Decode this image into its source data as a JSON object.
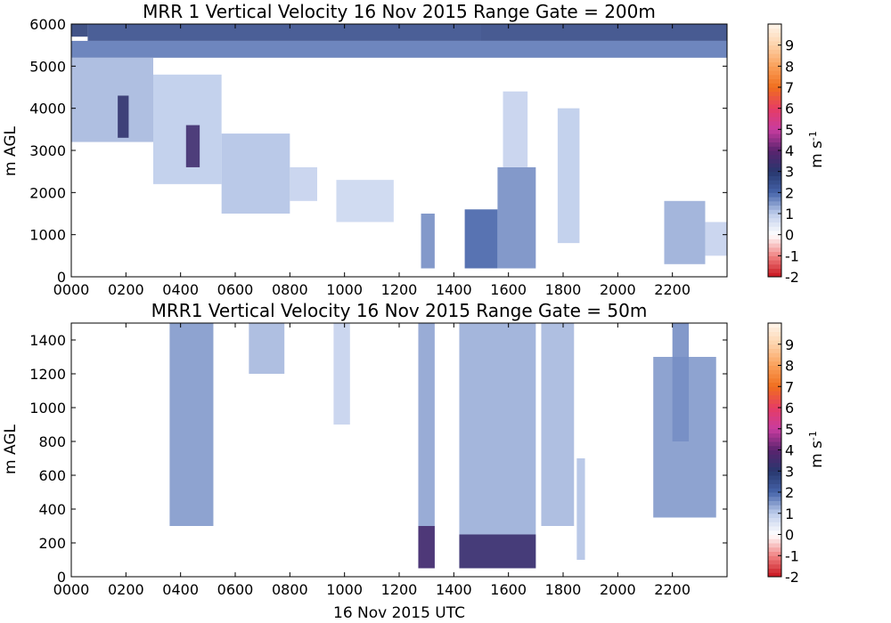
{
  "chart_data": [
    {
      "type": "heatmap",
      "title": "MRR 1 Vertical Velocity 16 Nov 2015 Range Gate = 200m",
      "xlabel": "",
      "ylabel": "m AGL",
      "xlim": [
        0,
        2400
      ],
      "ylim": [
        0,
        6000
      ],
      "x_tick_values": [
        0,
        200,
        400,
        600,
        800,
        1000,
        1200,
        1400,
        1600,
        1800,
        2000,
        2200
      ],
      "x_tick_labels": [
        "0000",
        "0200",
        "0400",
        "0600",
        "0800",
        "1000",
        "1200",
        "1400",
        "1600",
        "1800",
        "2000",
        "2200"
      ],
      "y_ticks": [
        0,
        1000,
        2000,
        3000,
        4000,
        5000,
        6000
      ],
      "colorbar": {
        "label": "m s$^{-1}$",
        "range": [
          -2,
          10
        ],
        "ticks": [
          -2,
          -1,
          0,
          1,
          2,
          3,
          4,
          5,
          6,
          7,
          8,
          9
        ]
      },
      "regions": [
        {
          "x": [
            0,
            60
          ],
          "y": [
            5700,
            6000
          ],
          "v": 2.8
        },
        {
          "x": [
            60,
            1500
          ],
          "y": [
            5600,
            6000
          ],
          "v": 2.5
        },
        {
          "x": [
            1500,
            2400
          ],
          "y": [
            5600,
            6000
          ],
          "v": 2.6
        },
        {
          "x": [
            0,
            2400
          ],
          "y": [
            5200,
            5600
          ],
          "v": 1.8
        },
        {
          "x": [
            0,
            300
          ],
          "y": [
            3200,
            5200
          ],
          "v": 1.2
        },
        {
          "x": [
            300,
            550
          ],
          "y": [
            2200,
            4800
          ],
          "v": 1.0
        },
        {
          "x": [
            550,
            800
          ],
          "y": [
            1500,
            3400
          ],
          "v": 1.1
        },
        {
          "x": [
            800,
            900
          ],
          "y": [
            1800,
            2600
          ],
          "v": 0.9
        },
        {
          "x": [
            970,
            1180
          ],
          "y": [
            1300,
            2300
          ],
          "v": 0.8
        },
        {
          "x": [
            1280,
            1330
          ],
          "y": [
            200,
            1500
          ],
          "v": 1.6
        },
        {
          "x": [
            1440,
            1560
          ],
          "y": [
            200,
            1600
          ],
          "v": 2.0
        },
        {
          "x": [
            1560,
            1700
          ],
          "y": [
            200,
            2600
          ],
          "v": 1.6
        },
        {
          "x": [
            1580,
            1670
          ],
          "y": [
            2600,
            4400
          ],
          "v": 0.9
        },
        {
          "x": [
            1780,
            1860
          ],
          "y": [
            800,
            4000
          ],
          "v": 1.0
        },
        {
          "x": [
            2170,
            2320
          ],
          "y": [
            300,
            1800
          ],
          "v": 1.3
        },
        {
          "x": [
            2320,
            2400
          ],
          "y": [
            500,
            1300
          ],
          "v": 0.9
        },
        {
          "x": [
            420,
            470
          ],
          "y": [
            2600,
            3600
          ],
          "v": 3.5
        },
        {
          "x": [
            170,
            210
          ],
          "y": [
            3300,
            4300
          ],
          "v": 3.2
        }
      ]
    },
    {
      "type": "heatmap",
      "title": "MRR1 Vertical Velocity 16 Nov 2015 Range Gate = 50m",
      "xlabel": "16 Nov 2015 UTC",
      "ylabel": "m AGL",
      "xlim": [
        0,
        2400
      ],
      "ylim": [
        0,
        1500
      ],
      "x_tick_values": [
        0,
        200,
        400,
        600,
        800,
        1000,
        1200,
        1400,
        1600,
        1800,
        2000,
        2200
      ],
      "x_tick_labels": [
        "0000",
        "0200",
        "0400",
        "0600",
        "0800",
        "1000",
        "1200",
        "1400",
        "1600",
        "1800",
        "2000",
        "2200"
      ],
      "y_ticks": [
        0,
        200,
        400,
        600,
        800,
        1000,
        1200,
        1400
      ],
      "colorbar": {
        "label": "m s$^{-1}$",
        "range": [
          -2,
          10
        ],
        "ticks": [
          -2,
          -1,
          0,
          1,
          2,
          3,
          4,
          5,
          6,
          7,
          8,
          9
        ]
      },
      "regions": [
        {
          "x": [
            360,
            520
          ],
          "y": [
            300,
            1500
          ],
          "v": 1.5
        },
        {
          "x": [
            650,
            780
          ],
          "y": [
            1200,
            1500
          ],
          "v": 1.2
        },
        {
          "x": [
            960,
            1020
          ],
          "y": [
            900,
            1500
          ],
          "v": 0.9
        },
        {
          "x": [
            1270,
            1330
          ],
          "y": [
            50,
            1500
          ],
          "v": 1.4
        },
        {
          "x": [
            1420,
            1700
          ],
          "y": [
            50,
            1500
          ],
          "v": 1.3
        },
        {
          "x": [
            1270,
            1330
          ],
          "y": [
            50,
            300
          ],
          "v": 3.6
        },
        {
          "x": [
            1420,
            1700
          ],
          "y": [
            50,
            250
          ],
          "v": 3.4
        },
        {
          "x": [
            1720,
            1840
          ],
          "y": [
            300,
            1500
          ],
          "v": 1.2
        },
        {
          "x": [
            1850,
            1880
          ],
          "y": [
            100,
            700
          ],
          "v": 1.1
        },
        {
          "x": [
            2130,
            2360
          ],
          "y": [
            350,
            1300
          ],
          "v": 1.5
        },
        {
          "x": [
            2200,
            2260
          ],
          "y": [
            800,
            1500
          ],
          "v": 1.6
        }
      ]
    }
  ]
}
